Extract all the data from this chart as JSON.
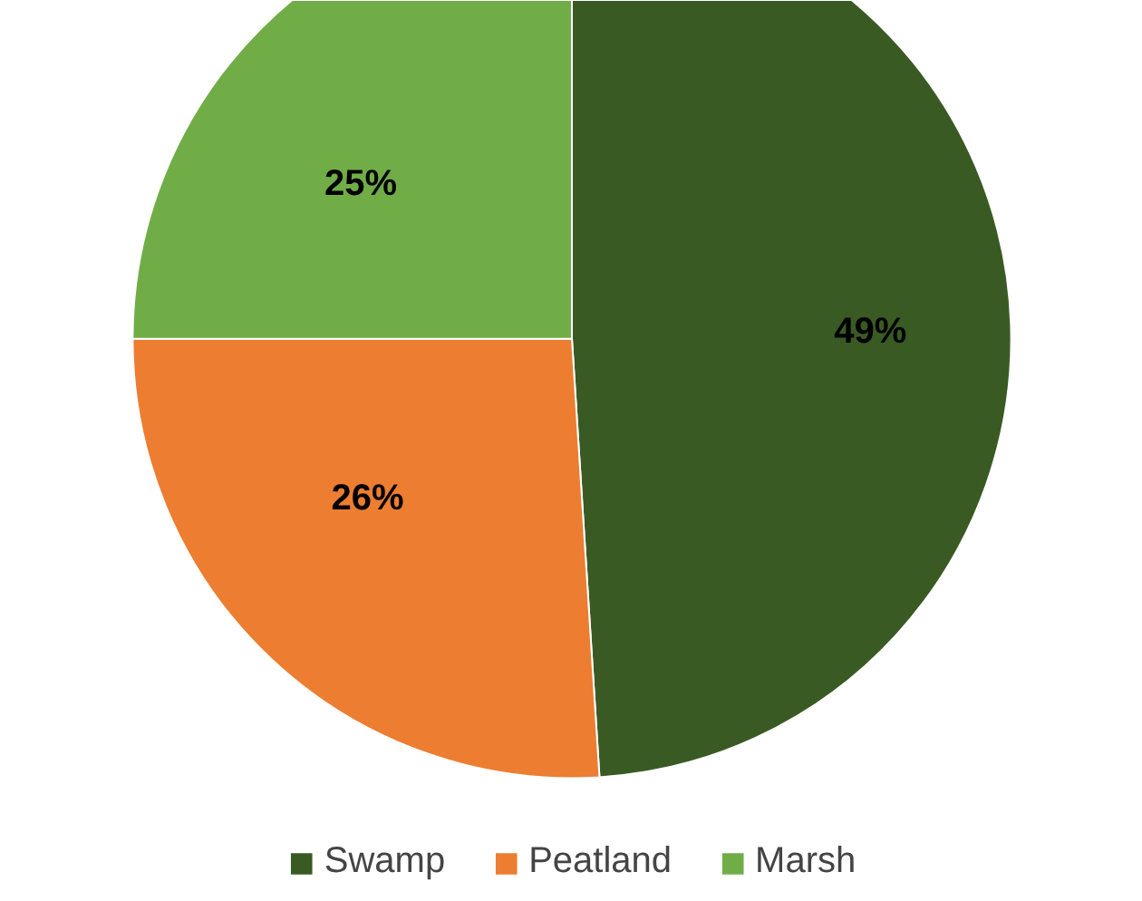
{
  "chart_data": {
    "type": "pie",
    "categories": [
      "Swamp",
      "Peatland",
      "Marsh"
    ],
    "values": [
      49,
      26,
      25
    ],
    "colors": [
      "#3a5a24",
      "#ed7d31",
      "#70ad47"
    ],
    "value_labels": [
      "49%",
      "26%",
      "25%"
    ],
    "legend": "bottom"
  }
}
